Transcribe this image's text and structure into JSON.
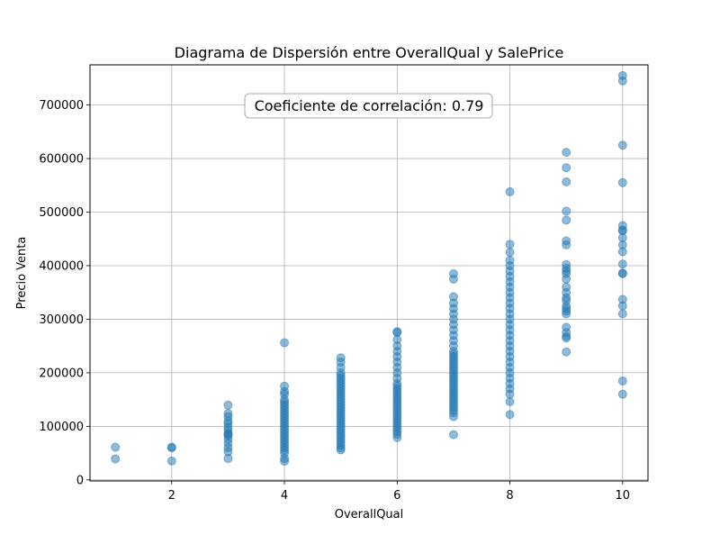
{
  "chart_data": {
    "type": "scatter",
    "title": "Diagrama de Dispersión entre OverallQual y SalePrice",
    "xlabel": "OverallQual",
    "ylabel": "Precio Venta",
    "xlim": [
      0.55,
      10.45
    ],
    "ylim": [
      -2000,
      775000
    ],
    "xticks": [
      2,
      4,
      6,
      8,
      10
    ],
    "yticks": [
      0,
      100000,
      200000,
      300000,
      400000,
      500000,
      600000,
      700000
    ],
    "grid": true,
    "annotation": "Coeficiente de correlación: 0.79",
    "point_color": "#1f77b4",
    "series": [
      {
        "points": [
          [
            1,
            61000
          ],
          [
            1,
            39300
          ],
          [
            2,
            60000
          ],
          [
            2,
            35311
          ],
          [
            2,
            61000
          ],
          [
            3,
            139600
          ],
          [
            3,
            124000
          ],
          [
            3,
            118000
          ],
          [
            3,
            105000
          ],
          [
            3,
            93000
          ],
          [
            3,
            87000
          ],
          [
            3,
            82500
          ],
          [
            3,
            76000
          ],
          [
            3,
            68400
          ],
          [
            3,
            60000
          ],
          [
            3,
            52500
          ],
          [
            3,
            40000
          ],
          [
            3,
            85000
          ],
          [
            3,
            98000
          ],
          [
            3,
            110000
          ],
          [
            4,
            256000
          ],
          [
            4,
            175000
          ],
          [
            4,
            165000
          ],
          [
            4,
            150000
          ],
          [
            4,
            145000
          ],
          [
            4,
            140000
          ],
          [
            4,
            135000
          ],
          [
            4,
            130000
          ],
          [
            4,
            125000
          ],
          [
            4,
            120000
          ],
          [
            4,
            115000
          ],
          [
            4,
            110000
          ],
          [
            4,
            105000
          ],
          [
            4,
            100000
          ],
          [
            4,
            95000
          ],
          [
            4,
            90000
          ],
          [
            4,
            85000
          ],
          [
            4,
            80000
          ],
          [
            4,
            75000
          ],
          [
            4,
            70000
          ],
          [
            4,
            65000
          ],
          [
            4,
            60000
          ],
          [
            4,
            55000
          ],
          [
            4,
            50000
          ],
          [
            4,
            40000
          ],
          [
            4,
            34900
          ],
          [
            4,
            160000
          ],
          [
            5,
            228000
          ],
          [
            5,
            220000
          ],
          [
            5,
            210000
          ],
          [
            5,
            200000
          ],
          [
            5,
            195000
          ],
          [
            5,
            190000
          ],
          [
            5,
            185000
          ],
          [
            5,
            180000
          ],
          [
            5,
            175000
          ],
          [
            5,
            170000
          ],
          [
            5,
            165000
          ],
          [
            5,
            160000
          ],
          [
            5,
            155000
          ],
          [
            5,
            150000
          ],
          [
            5,
            145000
          ],
          [
            5,
            140000
          ],
          [
            5,
            135000
          ],
          [
            5,
            130000
          ],
          [
            5,
            125000
          ],
          [
            5,
            120000
          ],
          [
            5,
            115000
          ],
          [
            5,
            110000
          ],
          [
            5,
            105000
          ],
          [
            5,
            100000
          ],
          [
            5,
            95000
          ],
          [
            5,
            90000
          ],
          [
            5,
            85000
          ],
          [
            5,
            80000
          ],
          [
            5,
            75000
          ],
          [
            5,
            70000
          ],
          [
            5,
            65000
          ],
          [
            5,
            60000
          ],
          [
            5,
            55993
          ],
          [
            6,
            277000
          ],
          [
            6,
            275000
          ],
          [
            6,
            262000
          ],
          [
            6,
            250000
          ],
          [
            6,
            240000
          ],
          [
            6,
            230000
          ],
          [
            6,
            220000
          ],
          [
            6,
            210000
          ],
          [
            6,
            200000
          ],
          [
            6,
            190000
          ],
          [
            6,
            180000
          ],
          [
            6,
            175000
          ],
          [
            6,
            170000
          ],
          [
            6,
            165000
          ],
          [
            6,
            160000
          ],
          [
            6,
            155000
          ],
          [
            6,
            150000
          ],
          [
            6,
            145000
          ],
          [
            6,
            140000
          ],
          [
            6,
            135000
          ],
          [
            6,
            130000
          ],
          [
            6,
            125000
          ],
          [
            6,
            120000
          ],
          [
            6,
            115000
          ],
          [
            6,
            110000
          ],
          [
            6,
            105000
          ],
          [
            6,
            100000
          ],
          [
            6,
            95000
          ],
          [
            6,
            90000
          ],
          [
            6,
            85000
          ],
          [
            6,
            79000
          ],
          [
            7,
            385000
          ],
          [
            7,
            375000
          ],
          [
            7,
            342000
          ],
          [
            7,
            330000
          ],
          [
            7,
            320000
          ],
          [
            7,
            310000
          ],
          [
            7,
            300000
          ],
          [
            7,
            290000
          ],
          [
            7,
            280000
          ],
          [
            7,
            270000
          ],
          [
            7,
            260000
          ],
          [
            7,
            250000
          ],
          [
            7,
            240000
          ],
          [
            7,
            235000
          ],
          [
            7,
            230000
          ],
          [
            7,
            225000
          ],
          [
            7,
            220000
          ],
          [
            7,
            215000
          ],
          [
            7,
            210000
          ],
          [
            7,
            205000
          ],
          [
            7,
            200000
          ],
          [
            7,
            195000
          ],
          [
            7,
            190000
          ],
          [
            7,
            185000
          ],
          [
            7,
            180000
          ],
          [
            7,
            175000
          ],
          [
            7,
            170000
          ],
          [
            7,
            165000
          ],
          [
            7,
            160000
          ],
          [
            7,
            155000
          ],
          [
            7,
            150000
          ],
          [
            7,
            145000
          ],
          [
            7,
            140000
          ],
          [
            7,
            135000
          ],
          [
            7,
            130000
          ],
          [
            7,
            125000
          ],
          [
            7,
            118000
          ],
          [
            7,
            84500
          ],
          [
            8,
            538000
          ],
          [
            8,
            440000
          ],
          [
            8,
            425000
          ],
          [
            8,
            410000
          ],
          [
            8,
            400000
          ],
          [
            8,
            390000
          ],
          [
            8,
            380000
          ],
          [
            8,
            370000
          ],
          [
            8,
            360000
          ],
          [
            8,
            350000
          ],
          [
            8,
            340000
          ],
          [
            8,
            330000
          ],
          [
            8,
            320000
          ],
          [
            8,
            310000
          ],
          [
            8,
            300000
          ],
          [
            8,
            290000
          ],
          [
            8,
            280000
          ],
          [
            8,
            270000
          ],
          [
            8,
            260000
          ],
          [
            8,
            250000
          ],
          [
            8,
            240000
          ],
          [
            8,
            230000
          ],
          [
            8,
            220000
          ],
          [
            8,
            210000
          ],
          [
            8,
            200000
          ],
          [
            8,
            190000
          ],
          [
            8,
            180000
          ],
          [
            8,
            170000
          ],
          [
            8,
            160000
          ],
          [
            8,
            146000
          ],
          [
            8,
            122000
          ],
          [
            9,
            611657
          ],
          [
            9,
            582933
          ],
          [
            9,
            556581
          ],
          [
            9,
            501837
          ],
          [
            9,
            485000
          ],
          [
            9,
            446261
          ],
          [
            9,
            438780
          ],
          [
            9,
            402000
          ],
          [
            9,
            395000
          ],
          [
            9,
            390000
          ],
          [
            9,
            385000
          ],
          [
            9,
            375000
          ],
          [
            9,
            360000
          ],
          [
            9,
            350000
          ],
          [
            9,
            340000
          ],
          [
            9,
            335000
          ],
          [
            9,
            325000
          ],
          [
            9,
            320000
          ],
          [
            9,
            315000
          ],
          [
            9,
            310000
          ],
          [
            9,
            285000
          ],
          [
            9,
            275000
          ],
          [
            9,
            268000
          ],
          [
            9,
            265000
          ],
          [
            9,
            239000
          ],
          [
            10,
            755000
          ],
          [
            10,
            745000
          ],
          [
            10,
            625000
          ],
          [
            10,
            555000
          ],
          [
            10,
            475000
          ],
          [
            10,
            466500
          ],
          [
            10,
            465000
          ],
          [
            10,
            451950
          ],
          [
            10,
            438780
          ],
          [
            10,
            426000
          ],
          [
            10,
            403000
          ],
          [
            10,
            386250
          ],
          [
            10,
            385000
          ],
          [
            10,
            337000
          ],
          [
            10,
            325000
          ],
          [
            10,
            310000
          ],
          [
            10,
            184750
          ],
          [
            10,
            160000
          ]
        ]
      }
    ]
  }
}
